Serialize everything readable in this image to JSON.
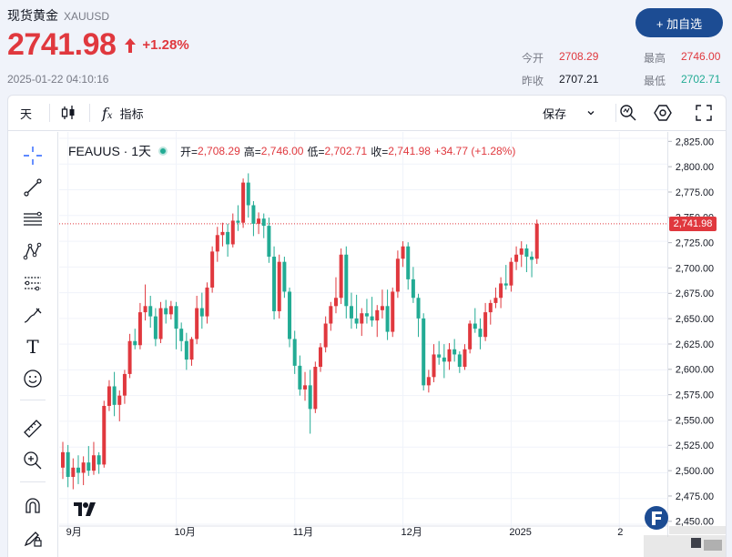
{
  "header": {
    "name": "现货黄金",
    "code": "XAUUSD",
    "price": "2741.98",
    "change_pct": "+1.28%",
    "timestamp": "2025-01-22 04:10:16",
    "add_button": "+ 加自选",
    "stats": {
      "open_label": "今开",
      "open": "2708.29",
      "high_label": "最高",
      "high": "2746.00",
      "prev_label": "昨收",
      "prev": "2707.21",
      "low_label": "最低",
      "low": "2702.71"
    }
  },
  "toolbar": {
    "interval": "天",
    "indicators": "指标",
    "save": "保存"
  },
  "legend": {
    "symbol": "FEAUUS · 1天",
    "open_l": "开=",
    "open_v": "2,708.29",
    "high_l": "高=",
    "high_v": "2,746.00",
    "low_l": "低=",
    "low_v": "2,702.71",
    "close_l": "收=",
    "close_v": "2,741.98",
    "change": "+34.77 (+1.28%)"
  },
  "colors": {
    "up": "#e0383e",
    "down": "#22ab94",
    "accent": "#1c4c93"
  },
  "sidebar_icons": [
    "crosshair-icon",
    "trend-line-icon",
    "fib-icon",
    "pattern-icon",
    "forecast-icon",
    "brush-icon",
    "text-icon",
    "emoji-icon",
    "ruler-icon",
    "zoom-icon",
    "magnet-icon",
    "lock-pen-icon"
  ],
  "chart_data": {
    "type": "candlestick",
    "last_price_label": "2,741.98",
    "ylim": [
      2450,
      2830
    ],
    "y_ticks": [
      2450,
      2475,
      2500,
      2525,
      2550,
      2575,
      2600,
      2625,
      2650,
      2675,
      2700,
      2725,
      2750,
      2775,
      2800,
      2825
    ],
    "y_tick_labels": [
      "2,450.00",
      "2,475.00",
      "2,500.00",
      "2,525.00",
      "2,550.00",
      "2,575.00",
      "2,600.00",
      "2,625.00",
      "2,650.00",
      "2,675.00",
      "2,700.00",
      "2,725.00",
      "2,750.00",
      "2,775.00",
      "2,800.00",
      "2,825.00"
    ],
    "x_labels": [
      {
        "label": "9月",
        "index": 1
      },
      {
        "label": "10月",
        "index": 22
      },
      {
        "label": "11月",
        "index": 45
      },
      {
        "label": "12月",
        "index": 66
      },
      {
        "label": "2025",
        "index": 87
      },
      {
        "label": "2",
        "index": 108
      }
    ],
    "last_price": 2741.98,
    "ohlc": [
      [
        2505,
        2530,
        2494,
        2520
      ],
      [
        2520,
        2527,
        2486,
        2496
      ],
      [
        2496,
        2514,
        2484,
        2505
      ],
      [
        2505,
        2517,
        2489,
        2500
      ],
      [
        2500,
        2516,
        2488,
        2510
      ],
      [
        2510,
        2526,
        2497,
        2502
      ],
      [
        2502,
        2530,
        2498,
        2517
      ],
      [
        2517,
        2520,
        2499,
        2508
      ],
      [
        2508,
        2570,
        2505,
        2565
      ],
      [
        2565,
        2590,
        2560,
        2584
      ],
      [
        2584,
        2598,
        2555,
        2566
      ],
      [
        2566,
        2580,
        2550,
        2575
      ],
      [
        2575,
        2600,
        2567,
        2596
      ],
      [
        2596,
        2635,
        2592,
        2628
      ],
      [
        2628,
        2640,
        2620,
        2624
      ],
      [
        2624,
        2665,
        2620,
        2656
      ],
      [
        2656,
        2683,
        2648,
        2662
      ],
      [
        2662,
        2672,
        2641,
        2652
      ],
      [
        2652,
        2660,
        2623,
        2630
      ],
      [
        2630,
        2666,
        2626,
        2660
      ],
      [
        2660,
        2668,
        2645,
        2654
      ],
      [
        2654,
        2667,
        2649,
        2662
      ],
      [
        2662,
        2666,
        2620,
        2640
      ],
      [
        2640,
        2646,
        2618,
        2628
      ],
      [
        2628,
        2636,
        2600,
        2610
      ],
      [
        2610,
        2632,
        2604,
        2630
      ],
      [
        2630,
        2672,
        2625,
        2660
      ],
      [
        2660,
        2675,
        2640,
        2652
      ],
      [
        2652,
        2685,
        2645,
        2680
      ],
      [
        2680,
        2720,
        2675,
        2715
      ],
      [
        2715,
        2739,
        2705,
        2731
      ],
      [
        2731,
        2743,
        2720,
        2734
      ],
      [
        2734,
        2742,
        2710,
        2722
      ],
      [
        2722,
        2752,
        2719,
        2745
      ],
      [
        2745,
        2760,
        2735,
        2743
      ],
      [
        2743,
        2786,
        2738,
        2782
      ],
      [
        2782,
        2791,
        2748,
        2760
      ],
      [
        2760,
        2764,
        2730,
        2742
      ],
      [
        2742,
        2753,
        2732,
        2747
      ],
      [
        2747,
        2752,
        2728,
        2740
      ],
      [
        2740,
        2748,
        2704,
        2710
      ],
      [
        2710,
        2720,
        2649,
        2657
      ],
      [
        2657,
        2712,
        2650,
        2705
      ],
      [
        2705,
        2710,
        2670,
        2676
      ],
      [
        2676,
        2680,
        2622,
        2630
      ],
      [
        2630,
        2638,
        2596,
        2604
      ],
      [
        2604,
        2614,
        2575,
        2581
      ],
      [
        2581,
        2598,
        2570,
        2585
      ],
      [
        2585,
        2600,
        2538,
        2562
      ],
      [
        2562,
        2608,
        2558,
        2603
      ],
      [
        2603,
        2626,
        2598,
        2622
      ],
      [
        2622,
        2652,
        2617,
        2645
      ],
      [
        2645,
        2666,
        2638,
        2662
      ],
      [
        2662,
        2690,
        2655,
        2670
      ],
      [
        2670,
        2718,
        2664,
        2712
      ],
      [
        2712,
        2720,
        2650,
        2662
      ],
      [
        2662,
        2675,
        2640,
        2650
      ],
      [
        2650,
        2673,
        2640,
        2645
      ],
      [
        2645,
        2660,
        2633,
        2655
      ],
      [
        2655,
        2669,
        2645,
        2652
      ],
      [
        2652,
        2671,
        2642,
        2648
      ],
      [
        2648,
        2663,
        2632,
        2658
      ],
      [
        2658,
        2678,
        2650,
        2662
      ],
      [
        2662,
        2678,
        2629,
        2637
      ],
      [
        2637,
        2680,
        2632,
        2676
      ],
      [
        2676,
        2716,
        2670,
        2708
      ],
      [
        2708,
        2725,
        2700,
        2720
      ],
      [
        2720,
        2724,
        2678,
        2688
      ],
      [
        2688,
        2700,
        2665,
        2670
      ],
      [
        2670,
        2674,
        2632,
        2650
      ],
      [
        2650,
        2655,
        2580,
        2585
      ],
      [
        2585,
        2600,
        2578,
        2593
      ],
      [
        2593,
        2625,
        2588,
        2615
      ],
      [
        2615,
        2628,
        2605,
        2612
      ],
      [
        2612,
        2625,
        2592,
        2608
      ],
      [
        2608,
        2626,
        2600,
        2620
      ],
      [
        2620,
        2630,
        2608,
        2615
      ],
      [
        2615,
        2618,
        2597,
        2603
      ],
      [
        2603,
        2625,
        2600,
        2620
      ],
      [
        2620,
        2648,
        2616,
        2645
      ],
      [
        2645,
        2660,
        2636,
        2640
      ],
      [
        2640,
        2650,
        2620,
        2632
      ],
      [
        2632,
        2665,
        2628,
        2656
      ],
      [
        2656,
        2668,
        2644,
        2665
      ],
      [
        2665,
        2680,
        2660,
        2670
      ],
      [
        2670,
        2690,
        2660,
        2684
      ],
      [
        2684,
        2702,
        2678,
        2682
      ],
      [
        2682,
        2709,
        2676,
        2705
      ],
      [
        2705,
        2720,
        2697,
        2712
      ],
      [
        2712,
        2725,
        2700,
        2718
      ],
      [
        2718,
        2722,
        2695,
        2710
      ],
      [
        2710,
        2715,
        2690,
        2707
      ],
      [
        2708,
        2746,
        2703,
        2742
      ]
    ]
  }
}
